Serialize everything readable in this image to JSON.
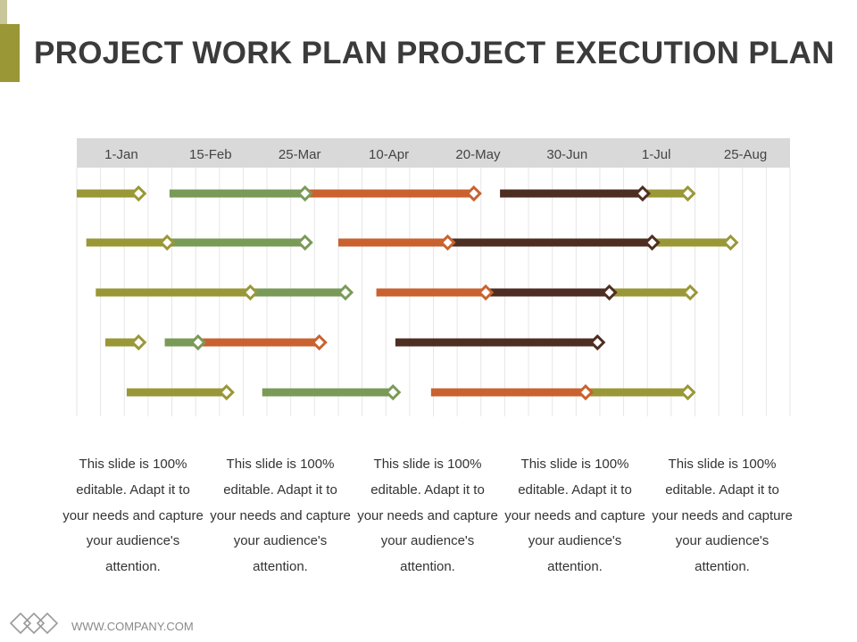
{
  "title": "PROJECT WORK PLAN PROJECT EXECUTION PLAN",
  "colors": {
    "olive": "#9a9737",
    "sage": "#7a9a58",
    "orange": "#c9622f",
    "brown": "#4e2e22",
    "header_bg": "#d9d9d9",
    "accent": "#9a9737"
  },
  "chart_data": {
    "type": "gantt",
    "x_labels": [
      "1-Jan",
      "15-Feb",
      "25-Mar",
      "10-Apr",
      "20-May",
      "30-Jun",
      "1-Jul",
      "25-Aug"
    ],
    "axis_range": [
      0,
      30
    ],
    "grid": true,
    "rows": [
      {
        "segments": [
          {
            "color": "olive",
            "start": 0.0,
            "end": 2.6,
            "marker": true
          },
          {
            "color": "sage",
            "start": 3.9,
            "end": 9.6,
            "marker": true
          },
          {
            "color": "orange",
            "start": 9.6,
            "end": 16.7,
            "marker": true
          },
          {
            "color": "brown",
            "start": 17.8,
            "end": 23.8,
            "marker": true
          },
          {
            "color": "olive",
            "start": 23.8,
            "end": 25.7,
            "marker": true
          }
        ]
      },
      {
        "segments": [
          {
            "color": "olive",
            "start": 0.4,
            "end": 3.8,
            "marker": true
          },
          {
            "color": "sage",
            "start": 3.8,
            "end": 9.6,
            "marker": true
          },
          {
            "color": "orange",
            "start": 11.0,
            "end": 15.6,
            "marker": true
          },
          {
            "color": "brown",
            "start": 15.6,
            "end": 24.2,
            "marker": true
          },
          {
            "color": "olive",
            "start": 24.2,
            "end": 27.5,
            "marker": true
          }
        ]
      },
      {
        "segments": [
          {
            "color": "olive",
            "start": 0.8,
            "end": 7.3,
            "marker": true
          },
          {
            "color": "sage",
            "start": 7.3,
            "end": 11.3,
            "marker": true
          },
          {
            "color": "orange",
            "start": 12.6,
            "end": 17.2,
            "marker": true
          },
          {
            "color": "brown",
            "start": 17.2,
            "end": 22.4,
            "marker": true
          },
          {
            "color": "olive",
            "start": 22.4,
            "end": 25.8,
            "marker": true
          }
        ]
      },
      {
        "segments": [
          {
            "color": "olive",
            "start": 1.2,
            "end": 2.6,
            "marker": true
          },
          {
            "color": "sage",
            "start": 3.7,
            "end": 5.1,
            "marker": true
          },
          {
            "color": "orange",
            "start": 5.1,
            "end": 10.2,
            "marker": true
          },
          {
            "color": "brown",
            "start": 13.4,
            "end": 21.9,
            "marker": true
          }
        ]
      },
      {
        "segments": [
          {
            "color": "olive",
            "start": 2.1,
            "end": 6.3,
            "marker": true
          },
          {
            "color": "sage",
            "start": 7.8,
            "end": 13.3,
            "marker": true
          },
          {
            "color": "orange",
            "start": 14.9,
            "end": 21.4,
            "marker": true
          },
          {
            "color": "olive",
            "start": 21.4,
            "end": 25.7,
            "marker": true
          }
        ]
      }
    ]
  },
  "captions": [
    "This slide is 100% editable. Adapt it to your needs and capture your audience's attention.",
    "This slide is 100% editable. Adapt it to your needs and capture your audience's attention.",
    "This slide is 100% editable. Adapt it to your needs and capture your audience's attention.",
    "This slide is 100% editable. Adapt it to your needs and capture your audience's attention.",
    "This slide is 100% editable. Adapt it to your needs and capture your audience's attention."
  ],
  "footer": {
    "url": "WWW.COMPANY.COM",
    "logo_icon": "diamond-chain-logo-icon"
  }
}
